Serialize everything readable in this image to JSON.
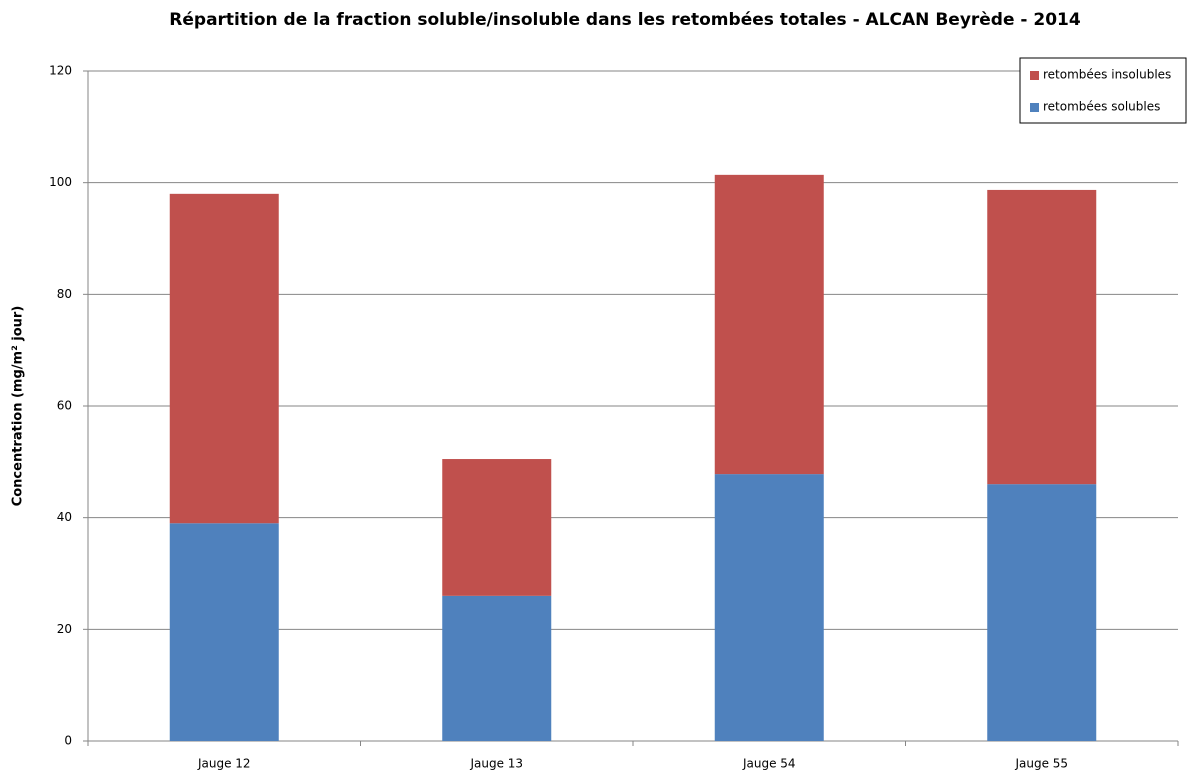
{
  "chart_data": {
    "type": "stacked_bar",
    "title": "Répartition de la fraction soluble/insoluble dans les retombées totales - ALCAN Beyrède - 2014",
    "y_label": "Concentration (mg/m² jour)",
    "categories": [
      "Jauge 12",
      "Jauge 13",
      "Jauge 54",
      "Jauge 55"
    ],
    "series": [
      {
        "name": "retombées solubles",
        "color": "#4f81bd",
        "values": [
          39.0,
          26.0,
          47.8,
          46.0
        ]
      },
      {
        "name": "retombées insolubles",
        "color": "#c0504d",
        "values": [
          59.0,
          24.5,
          53.6,
          52.7
        ]
      }
    ],
    "ylim": [
      0,
      120
    ],
    "yticks": [
      0,
      20,
      40,
      60,
      80,
      100,
      120
    ],
    "grid": true,
    "legend": "top-right"
  }
}
